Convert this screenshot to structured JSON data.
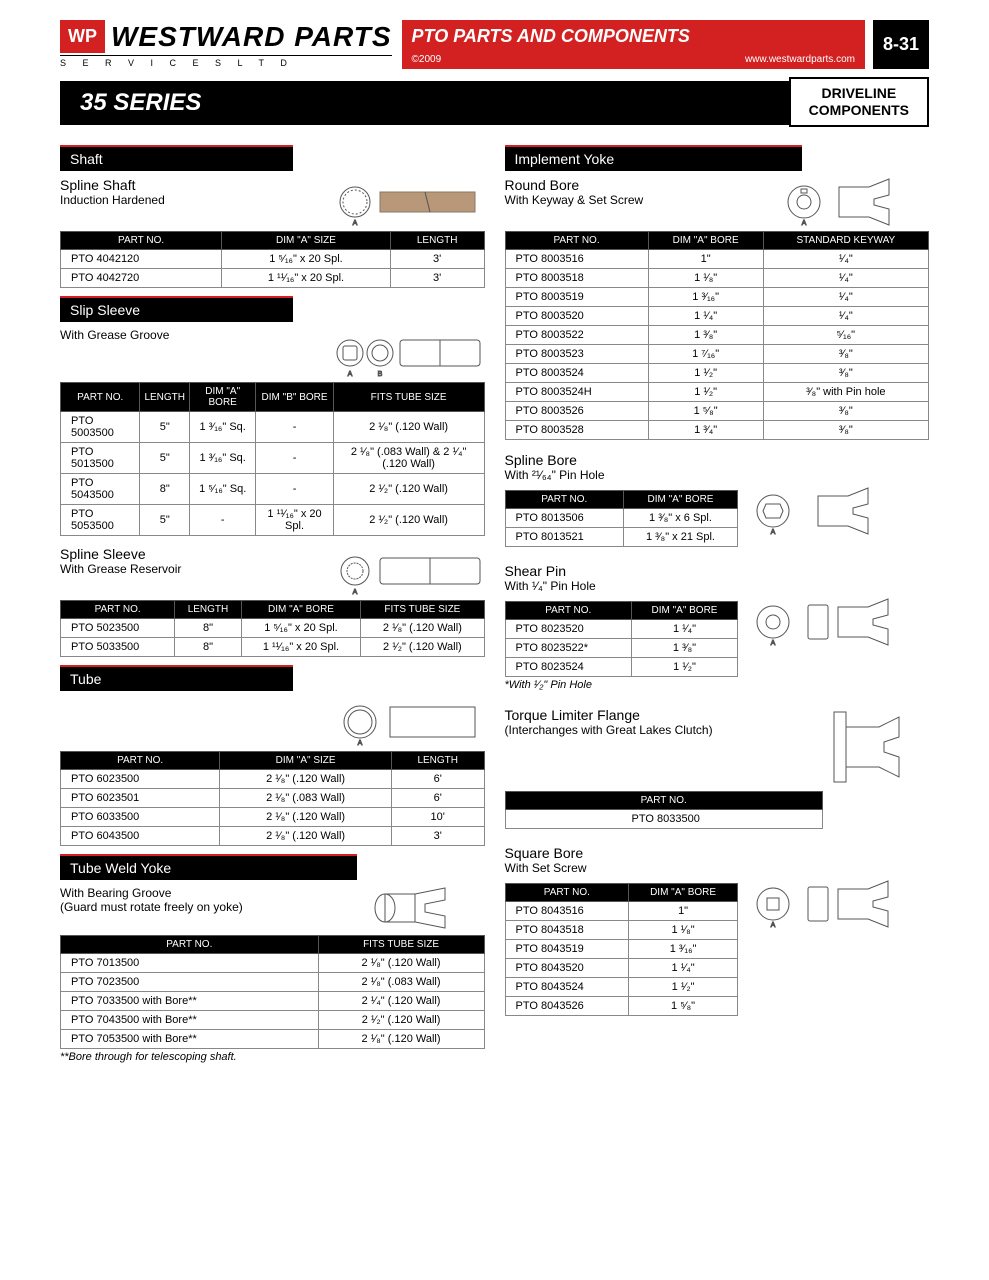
{
  "header": {
    "logo_icon": "WP",
    "logo_name": "WESTWARD PARTS",
    "logo_sub": "S E R V I C E S    L T D",
    "red_title": "PTO PARTS AND COMPONENTS",
    "copyright": "©2009",
    "url": "www.westwardparts.com",
    "page_no": "8-31",
    "series": "35 SERIES",
    "driveline1": "DRIVELINE",
    "driveline2": "COMPONENTS"
  },
  "left": {
    "shaft_bar": "Shaft",
    "spline_shaft_t": "Spline Shaft",
    "spline_shaft_d": "Induction Hardened",
    "shaft_cols": [
      "PART NO.",
      "DIM \"A\" SIZE",
      "LENGTH"
    ],
    "shaft_rows": [
      [
        "PTO 4042120",
        "1 ⁵⁄₁₆\" x 20 Spl.",
        "3'"
      ],
      [
        "PTO 4042720",
        "1 ¹¹⁄₁₆\" x 20 Spl.",
        "3'"
      ]
    ],
    "slip_bar": "Slip Sleeve",
    "slip_d": "With Grease Groove",
    "slip_cols": [
      "PART NO.",
      "LENGTH",
      "DIM \"A\" BORE",
      "DIM \"B\" BORE",
      "FITS TUBE SIZE"
    ],
    "slip_rows": [
      [
        "PTO 5003500",
        "5\"",
        "1 ³⁄₁₆\" Sq.",
        "-",
        "2 ¹⁄₈\" (.120 Wall)"
      ],
      [
        "PTO 5013500",
        "5\"",
        "1 ³⁄₁₆\" Sq.",
        "-",
        "2 ¹⁄₈\" (.083 Wall) & 2 ¹⁄₄\" (.120 Wall)"
      ],
      [
        "PTO 5043500",
        "8\"",
        "1 ⁵⁄₁₆\" Sq.",
        "-",
        "2 ¹⁄₂\" (.120 Wall)"
      ],
      [
        "PTO 5053500",
        "5\"",
        "-",
        "1 ¹¹⁄₁₆\" x 20 Spl.",
        "2 ¹⁄₂\" (.120 Wall)"
      ]
    ],
    "spline_sleeve_t": "Spline Sleeve",
    "spline_sleeve_d": "With Grease Reservoir",
    "ss_cols": [
      "PART NO.",
      "LENGTH",
      "DIM \"A\" BORE",
      "FITS TUBE SIZE"
    ],
    "ss_rows": [
      [
        "PTO 5023500",
        "8\"",
        "1 ⁵⁄₁₆\" x 20 Spl.",
        "2 ¹⁄₈\" (.120 Wall)"
      ],
      [
        "PTO 5033500",
        "8\"",
        "1 ¹¹⁄₁₆\" x 20 Spl.",
        "2 ¹⁄₂\" (.120 Wall)"
      ]
    ],
    "tube_bar": "Tube",
    "tube_cols": [
      "PART NO.",
      "DIM \"A\" SIZE",
      "LENGTH"
    ],
    "tube_rows": [
      [
        "PTO 6023500",
        "2 ¹⁄₈\" (.120 Wall)",
        "6'"
      ],
      [
        "PTO 6023501",
        "2 ¹⁄₈\" (.083 Wall)",
        "6'"
      ],
      [
        "PTO 6033500",
        "2 ¹⁄₈\" (.120 Wall)",
        "10'"
      ],
      [
        "PTO 6043500",
        "2 ¹⁄₈\" (.120 Wall)",
        "3'"
      ]
    ],
    "twy_bar": "Tube Weld Yoke",
    "twy_d1": "With Bearing Groove",
    "twy_d2": "(Guard must rotate freely on yoke)",
    "twy_cols": [
      "PART NO.",
      "FITS TUBE SIZE"
    ],
    "twy_rows": [
      [
        "PTO 7013500",
        "2 ¹⁄₈\" (.120 Wall)"
      ],
      [
        "PTO 7023500",
        "2 ¹⁄₈\" (.083 Wall)"
      ],
      [
        "PTO 7033500 with Bore**",
        "2 ¹⁄₄\" (.120 Wall)"
      ],
      [
        "PTO 7043500 with Bore**",
        "2 ¹⁄₂\" (.120 Wall)"
      ],
      [
        "PTO 7053500 with Bore**",
        "2 ¹⁄₈\" (.120 Wall)"
      ]
    ],
    "twy_note": "**Bore through for telescoping shaft."
  },
  "right": {
    "imp_bar": "Implement Yoke",
    "rb_t": "Round Bore",
    "rb_d": "With Keyway & Set Screw",
    "rb_cols": [
      "PART NO.",
      "DIM \"A\" BORE",
      "STANDARD KEYWAY"
    ],
    "rb_rows": [
      [
        "PTO 8003516",
        "1\"",
        "¹⁄₄\""
      ],
      [
        "PTO 8003518",
        "1 ¹⁄₈\"",
        "¹⁄₄\""
      ],
      [
        "PTO 8003519",
        "1 ³⁄₁₆\"",
        "¹⁄₄\""
      ],
      [
        "PTO 8003520",
        "1 ¹⁄₄\"",
        "¹⁄₄\""
      ],
      [
        "PTO 8003522",
        "1 ³⁄₈\"",
        "⁵⁄₁₆\""
      ],
      [
        "PTO 8003523",
        "1 ⁷⁄₁₆\"",
        "³⁄₈\""
      ],
      [
        "PTO 8003524",
        "1 ¹⁄₂\"",
        "³⁄₈\""
      ],
      [
        "PTO 8003524H",
        "1 ¹⁄₂\"",
        "³⁄₈\" with Pin hole"
      ],
      [
        "PTO 8003526",
        "1 ⁵⁄₈\"",
        "³⁄₈\""
      ],
      [
        "PTO 8003528",
        "1 ³⁄₄\"",
        "³⁄₈\""
      ]
    ],
    "sb_t": "Spline Bore",
    "sb_d": "With ²¹⁄₆₄\" Pin Hole",
    "sb_cols": [
      "PART NO.",
      "DIM \"A\" BORE"
    ],
    "sb_rows": [
      [
        "PTO 8013506",
        "1 ³⁄₈\" x 6 Spl."
      ],
      [
        "PTO 8013521",
        "1 ³⁄₈\" x 21 Spl."
      ]
    ],
    "sp_t": "Shear Pin",
    "sp_d": "With ¹⁄₄\" Pin Hole",
    "sp_cols": [
      "PART NO.",
      "DIM \"A\" BORE"
    ],
    "sp_rows": [
      [
        "PTO 8023520",
        "1 ¹⁄₄\""
      ],
      [
        "PTO 8023522*",
        "1 ³⁄₈\""
      ],
      [
        "PTO 8023524",
        "1 ¹⁄₂\""
      ]
    ],
    "sp_note": "*With ¹⁄₂\" Pin Hole",
    "tlf_t": "Torque Limiter Flange",
    "tlf_d": "(Interchanges with Great Lakes Clutch)",
    "tlf_cols": [
      "PART NO."
    ],
    "tlf_rows": [
      [
        "PTO 8033500"
      ]
    ],
    "sq_t": "Square Bore",
    "sq_d": "With Set Screw",
    "sq_cols": [
      "PART NO.",
      "DIM \"A\" BORE"
    ],
    "sq_rows": [
      [
        "PTO 8043516",
        "1\""
      ],
      [
        "PTO 8043518",
        "1 ¹⁄₈\""
      ],
      [
        "PTO 8043519",
        "1 ³⁄₁₆\""
      ],
      [
        "PTO 8043520",
        "1 ¹⁄₄\""
      ],
      [
        "PTO 8043524",
        "1 ¹⁄₂\""
      ],
      [
        "PTO 8043526",
        "1 ⁵⁄₈\""
      ]
    ]
  }
}
